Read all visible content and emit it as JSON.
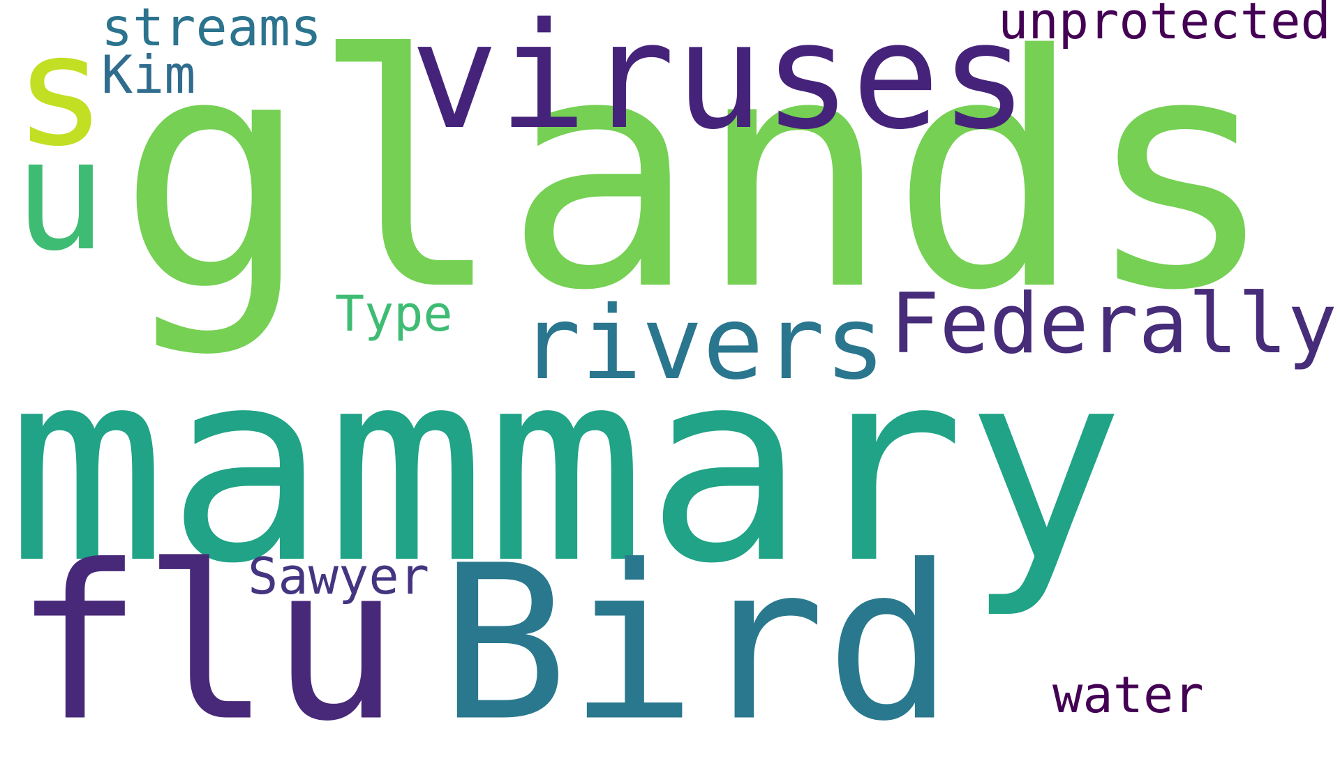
{
  "words": [
    {
      "id": "glands",
      "text": "glands",
      "color": "#75d054"
    },
    {
      "id": "mammary",
      "text": "mammary",
      "color": "#20a386"
    },
    {
      "id": "bird",
      "text": "Bird",
      "color": "#2a788e"
    },
    {
      "id": "flu",
      "text": "flu",
      "color": "#482878"
    },
    {
      "id": "viruses",
      "text": "viruses",
      "color": "#46237a"
    },
    {
      "id": "rivers",
      "text": "rivers",
      "color": "#2a768e"
    },
    {
      "id": "federally",
      "text": "Federally",
      "color": "#472c7a"
    },
    {
      "id": "s",
      "text": "s",
      "color": "#c2df23"
    },
    {
      "id": "u",
      "text": "u",
      "color": "#3fbc73"
    },
    {
      "id": "streams",
      "text": "streams",
      "color": "#2c738e"
    },
    {
      "id": "kim",
      "text": "Kim",
      "color": "#2f6c8e"
    },
    {
      "id": "unprotected",
      "text": "unprotected",
      "color": "#440154"
    },
    {
      "id": "type",
      "text": "Type",
      "color": "#3fbc73"
    },
    {
      "id": "sawyer",
      "text": "Sawyer",
      "color": "#453581"
    },
    {
      "id": "water",
      "text": "water",
      "color": "#440154"
    }
  ]
}
